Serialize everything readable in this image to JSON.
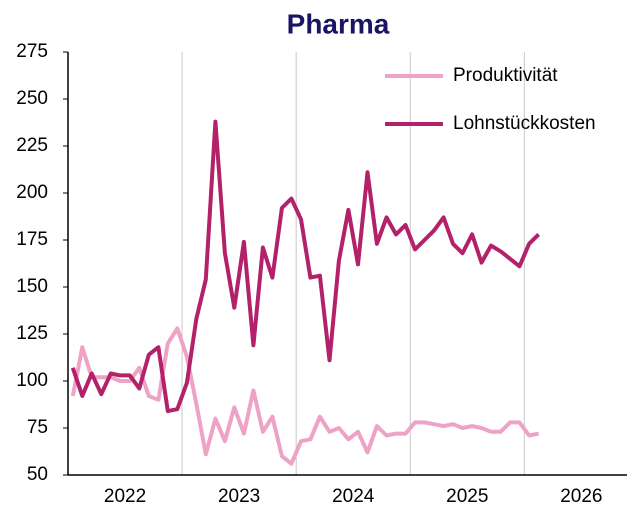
{
  "chart_data": {
    "type": "line",
    "title": "Pharma",
    "x": [
      2022.042,
      2022.125,
      2022.208,
      2022.292,
      2022.375,
      2022.458,
      2022.542,
      2022.625,
      2022.708,
      2022.792,
      2022.875,
      2022.958,
      2023.042,
      2023.125,
      2023.208,
      2023.292,
      2023.375,
      2023.458,
      2023.542,
      2023.625,
      2023.708,
      2023.792,
      2023.875,
      2023.958,
      2024.042,
      2024.125,
      2024.208,
      2024.292,
      2024.375,
      2024.458,
      2024.542,
      2024.625,
      2024.708,
      2024.792,
      2024.875,
      2024.958,
      2025.042,
      2025.125,
      2025.208,
      2025.292,
      2025.375,
      2025.458,
      2025.542,
      2025.625,
      2025.708,
      2025.792,
      2025.875,
      2025.958,
      2026.042,
      2026.125
    ],
    "series": [
      {
        "name": "Produktivität",
        "color": "#eea2c6",
        "values": [
          92,
          118,
          102,
          102,
          102,
          100,
          100,
          107,
          92,
          90,
          120,
          128,
          113,
          88,
          61,
          80,
          68,
          86,
          72,
          95,
          73,
          81,
          60,
          56,
          68,
          69,
          81,
          73,
          75,
          69,
          73,
          62,
          76,
          71,
          72,
          72,
          78,
          78,
          77,
          76,
          77,
          75,
          76,
          75,
          73,
          73,
          78,
          78,
          71,
          72
        ]
      },
      {
        "name": "Lohnstückkosten",
        "color": "#b3216b",
        "values": [
          107,
          92,
          104,
          93,
          104,
          103,
          103,
          96,
          114,
          118,
          84,
          85,
          99,
          133,
          154,
          238,
          168,
          139,
          174,
          119,
          171,
          155,
          192,
          197,
          186,
          155,
          156,
          111,
          164,
          191,
          162,
          211,
          173,
          187,
          178,
          183,
          170,
          175,
          180,
          187,
          173,
          168,
          178,
          163,
          172,
          169,
          165,
          161,
          173,
          178
        ]
      }
    ],
    "xlim": [
      2022,
      2026.9
    ],
    "xticks": [
      2023,
      2024,
      2025,
      2026
    ],
    "xlabels": [
      {
        "value": 2022.5,
        "label": "2022"
      },
      {
        "value": 2023.5,
        "label": "2023"
      },
      {
        "value": 2024.5,
        "label": "2024"
      },
      {
        "value": 2025.5,
        "label": "2025"
      },
      {
        "value": 2026.5,
        "label": "2026"
      }
    ],
    "ylim": [
      50,
      275
    ],
    "yticks": [
      50,
      75,
      100,
      125,
      150,
      175,
      200,
      225,
      250,
      275
    ],
    "grid": true,
    "legend": "top-right"
  }
}
